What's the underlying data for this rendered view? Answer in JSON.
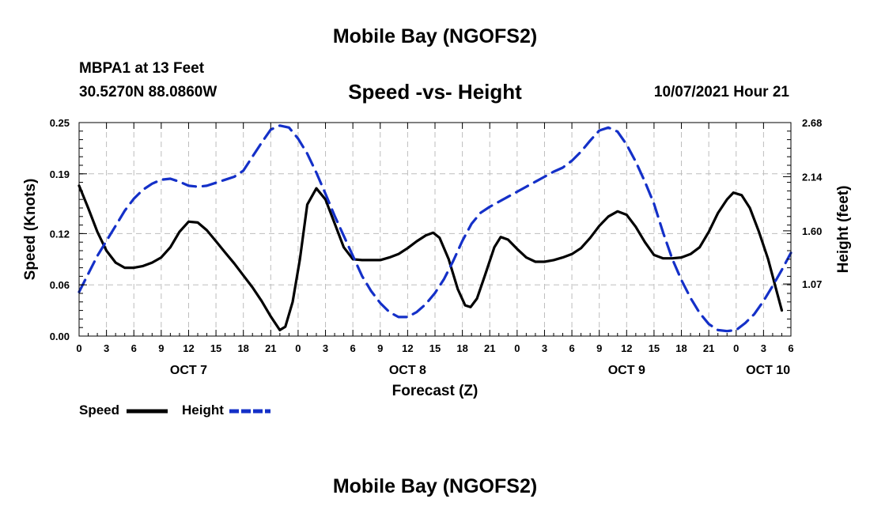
{
  "page": {
    "title_top": "Mobile Bay (NGOFS2)",
    "title_bottom": "Mobile Bay (NGOFS2)",
    "station": "MBPA1 at 13 Feet",
    "coordinates": "30.5270N  88.0860W",
    "subtitle": "Speed -vs- Height",
    "datetime": "10/07/2021 Hour 21"
  },
  "chart_data": {
    "type": "line",
    "title": "Speed -vs- Height",
    "xlabel": "Forecast (Z)",
    "ylabel": "Speed (Knots)",
    "y2label": "Height (feet)",
    "x_unit": "hours from OCT 7 00Z",
    "xlim": [
      0,
      78
    ],
    "ylim": [
      0,
      0.25
    ],
    "y2lim": [
      0.55,
      2.68
    ],
    "x_ticks": [
      0,
      3,
      6,
      9,
      12,
      15,
      18,
      21,
      24,
      27,
      30,
      33,
      36,
      39,
      42,
      45,
      48,
      51,
      54,
      57,
      60,
      63,
      66,
      69,
      72,
      75,
      78
    ],
    "x_tick_labels": [
      "0",
      "3",
      "6",
      "9",
      "12",
      "15",
      "18",
      "21",
      "0",
      "3",
      "6",
      "9",
      "12",
      "15",
      "18",
      "21",
      "0",
      "3",
      "6",
      "9",
      "12",
      "15",
      "18",
      "21",
      "0",
      "3",
      "6"
    ],
    "date_labels": [
      {
        "x": 12,
        "label": "OCT 7"
      },
      {
        "x": 36,
        "label": "OCT 8"
      },
      {
        "x": 60,
        "label": "OCT 9"
      },
      {
        "x": 75.5,
        "label": "OCT 10"
      }
    ],
    "y_ticks": [
      0.0,
      0.06,
      0.12,
      0.19,
      0.25
    ],
    "y_tick_labels": [
      "0.00",
      "0.06",
      "0.12",
      "0.19",
      "0.25"
    ],
    "y2_ticks": [
      1.07,
      1.6,
      2.14,
      2.68
    ],
    "y2_tick_labels": [
      "1.07",
      "1.60",
      "2.14",
      "2.68"
    ],
    "grid": true,
    "legend_position": "bottom-left",
    "series": [
      {
        "name": "Speed",
        "axis": "left",
        "color": "#000000",
        "style": "solid",
        "points": [
          [
            0,
            0.176
          ],
          [
            1,
            0.15
          ],
          [
            2,
            0.122
          ],
          [
            3,
            0.1
          ],
          [
            4,
            0.086
          ],
          [
            5,
            0.08
          ],
          [
            6,
            0.08
          ],
          [
            7,
            0.082
          ],
          [
            8,
            0.086
          ],
          [
            9,
            0.092
          ],
          [
            10,
            0.104
          ],
          [
            11,
            0.122
          ],
          [
            12,
            0.134
          ],
          [
            13,
            0.133
          ],
          [
            14,
            0.124
          ],
          [
            15,
            0.111
          ],
          [
            16,
            0.098
          ],
          [
            17,
            0.085
          ],
          [
            18,
            0.071
          ],
          [
            19,
            0.057
          ],
          [
            20,
            0.041
          ],
          [
            21,
            0.023
          ],
          [
            22,
            0.007
          ],
          [
            22.6,
            0.011
          ],
          [
            23.4,
            0.04
          ],
          [
            24.2,
            0.09
          ],
          [
            25,
            0.154
          ],
          [
            26,
            0.173
          ],
          [
            27,
            0.16
          ],
          [
            28,
            0.132
          ],
          [
            29,
            0.104
          ],
          [
            30,
            0.09
          ],
          [
            31,
            0.089
          ],
          [
            32,
            0.089
          ],
          [
            33,
            0.089
          ],
          [
            34,
            0.092
          ],
          [
            35,
            0.096
          ],
          [
            36,
            0.103
          ],
          [
            37,
            0.111
          ],
          [
            38,
            0.118
          ],
          [
            38.8,
            0.121
          ],
          [
            39.5,
            0.115
          ],
          [
            40.5,
            0.09
          ],
          [
            41.5,
            0.055
          ],
          [
            42.3,
            0.036
          ],
          [
            42.9,
            0.034
          ],
          [
            43.6,
            0.044
          ],
          [
            44.5,
            0.072
          ],
          [
            45.5,
            0.104
          ],
          [
            46.2,
            0.116
          ],
          [
            47,
            0.113
          ],
          [
            48,
            0.102
          ],
          [
            49,
            0.092
          ],
          [
            50,
            0.087
          ],
          [
            51,
            0.087
          ],
          [
            52,
            0.089
          ],
          [
            53,
            0.092
          ],
          [
            54,
            0.096
          ],
          [
            55,
            0.103
          ],
          [
            56,
            0.115
          ],
          [
            57,
            0.129
          ],
          [
            58,
            0.14
          ],
          [
            59,
            0.146
          ],
          [
            60,
            0.142
          ],
          [
            61,
            0.128
          ],
          [
            62,
            0.11
          ],
          [
            63,
            0.095
          ],
          [
            64,
            0.091
          ],
          [
            65,
            0.091
          ],
          [
            66,
            0.092
          ],
          [
            67,
            0.096
          ],
          [
            68,
            0.104
          ],
          [
            69,
            0.122
          ],
          [
            70,
            0.144
          ],
          [
            71,
            0.16
          ],
          [
            71.7,
            0.168
          ],
          [
            72.6,
            0.165
          ],
          [
            73.5,
            0.15
          ],
          [
            74.5,
            0.122
          ],
          [
            75.5,
            0.09
          ],
          [
            76.5,
            0.05
          ],
          [
            77,
            0.03
          ]
        ]
      },
      {
        "name": "Height",
        "axis": "right",
        "color": "#1430c8",
        "style": "dashed",
        "points": [
          [
            0,
            0.99
          ],
          [
            1,
            1.17
          ],
          [
            2,
            1.35
          ],
          [
            3,
            1.5
          ],
          [
            4,
            1.65
          ],
          [
            5,
            1.8
          ],
          [
            6,
            1.92
          ],
          [
            7,
            2.01
          ],
          [
            8,
            2.07
          ],
          [
            9,
            2.11
          ],
          [
            10,
            2.12
          ],
          [
            11,
            2.09
          ],
          [
            12,
            2.05
          ],
          [
            13,
            2.04
          ],
          [
            14,
            2.05
          ],
          [
            15,
            2.08
          ],
          [
            16,
            2.11
          ],
          [
            17,
            2.14
          ],
          [
            18,
            2.2
          ],
          [
            19,
            2.34
          ],
          [
            20,
            2.48
          ],
          [
            21,
            2.61
          ],
          [
            22,
            2.65
          ],
          [
            23,
            2.63
          ],
          [
            24,
            2.52
          ],
          [
            25,
            2.37
          ],
          [
            26,
            2.18
          ],
          [
            27,
            1.97
          ],
          [
            28,
            1.75
          ],
          [
            29,
            1.55
          ],
          [
            30,
            1.35
          ],
          [
            31,
            1.15
          ],
          [
            32,
            1.0
          ],
          [
            33,
            0.88
          ],
          [
            34,
            0.79
          ],
          [
            35,
            0.74
          ],
          [
            36,
            0.74
          ],
          [
            37,
            0.79
          ],
          [
            38,
            0.87
          ],
          [
            39,
            0.98
          ],
          [
            40,
            1.12
          ],
          [
            41,
            1.3
          ],
          [
            42,
            1.5
          ],
          [
            43,
            1.67
          ],
          [
            44,
            1.78
          ],
          [
            45,
            1.84
          ],
          [
            46,
            1.89
          ],
          [
            47,
            1.94
          ],
          [
            48,
            1.99
          ],
          [
            49,
            2.04
          ],
          [
            50,
            2.09
          ],
          [
            51,
            2.14
          ],
          [
            52,
            2.19
          ],
          [
            53,
            2.23
          ],
          [
            54,
            2.3
          ],
          [
            55,
            2.39
          ],
          [
            56,
            2.5
          ],
          [
            57,
            2.6
          ],
          [
            58,
            2.63
          ],
          [
            59,
            2.59
          ],
          [
            60,
            2.46
          ],
          [
            61,
            2.29
          ],
          [
            62,
            2.09
          ],
          [
            63,
            1.87
          ],
          [
            64,
            1.58
          ],
          [
            65,
            1.32
          ],
          [
            66,
            1.11
          ],
          [
            67,
            0.93
          ],
          [
            68,
            0.78
          ],
          [
            69,
            0.67
          ],
          [
            70,
            0.61
          ],
          [
            71,
            0.6
          ],
          [
            72,
            0.61
          ],
          [
            73,
            0.68
          ],
          [
            74,
            0.77
          ],
          [
            75,
            0.9
          ],
          [
            76,
            1.05
          ],
          [
            77,
            1.21
          ],
          [
            78,
            1.38
          ]
        ]
      }
    ]
  }
}
